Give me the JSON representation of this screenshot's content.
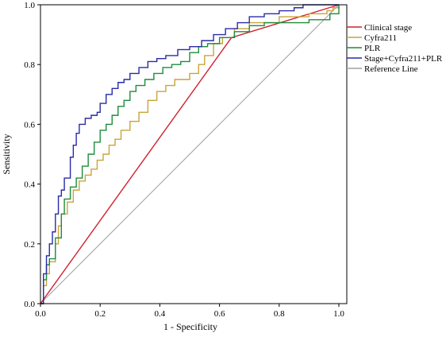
{
  "chart_data": {
    "type": "line",
    "title": "",
    "xlabel": "1 - Specificity",
    "ylabel": "Sensitivity",
    "xlim": [
      0,
      1
    ],
    "ylim": [
      0,
      1
    ],
    "x_ticks": [
      "0.0",
      "0.2",
      "0.4",
      "0.6",
      "0.8",
      "1.0"
    ],
    "y_ticks": [
      "0.0",
      "0.2",
      "0.4",
      "0.6",
      "0.8",
      "1.0"
    ],
    "grid": false,
    "legend_position": "right",
    "series": [
      {
        "name": "Clinical stage",
        "color": "#d0202e",
        "points": [
          [
            0,
            0
          ],
          [
            0.64,
            0.89
          ],
          [
            1,
            1
          ]
        ]
      },
      {
        "name": "Cyfra211",
        "color": "#c8a43a",
        "points": [
          [
            0,
            0
          ],
          [
            0.01,
            0.06
          ],
          [
            0.02,
            0.1
          ],
          [
            0.03,
            0.14
          ],
          [
            0.05,
            0.2
          ],
          [
            0.06,
            0.26
          ],
          [
            0.07,
            0.3
          ],
          [
            0.09,
            0.34
          ],
          [
            0.11,
            0.38
          ],
          [
            0.13,
            0.41
          ],
          [
            0.15,
            0.43
          ],
          [
            0.17,
            0.45
          ],
          [
            0.19,
            0.48
          ],
          [
            0.21,
            0.5
          ],
          [
            0.23,
            0.53
          ],
          [
            0.25,
            0.55
          ],
          [
            0.27,
            0.58
          ],
          [
            0.3,
            0.61
          ],
          [
            0.33,
            0.64
          ],
          [
            0.36,
            0.68
          ],
          [
            0.39,
            0.71
          ],
          [
            0.42,
            0.73
          ],
          [
            0.45,
            0.75
          ],
          [
            0.5,
            0.77
          ],
          [
            0.53,
            0.8
          ],
          [
            0.55,
            0.83
          ],
          [
            0.58,
            0.87
          ],
          [
            0.61,
            0.89
          ],
          [
            0.65,
            0.92
          ],
          [
            0.7,
            0.94
          ],
          [
            0.75,
            0.94
          ],
          [
            0.8,
            0.96
          ],
          [
            0.87,
            0.96
          ],
          [
            0.9,
            0.97
          ],
          [
            0.93,
            0.97
          ],
          [
            0.96,
            0.98
          ],
          [
            0.98,
            0.99
          ],
          [
            1,
            1
          ]
        ]
      },
      {
        "name": "PLR",
        "color": "#1e8c3c",
        "points": [
          [
            0,
            0
          ],
          [
            0.01,
            0.08
          ],
          [
            0.02,
            0.13
          ],
          [
            0.03,
            0.15
          ],
          [
            0.05,
            0.22
          ],
          [
            0.07,
            0.3
          ],
          [
            0.08,
            0.35
          ],
          [
            0.1,
            0.39
          ],
          [
            0.12,
            0.42
          ],
          [
            0.14,
            0.46
          ],
          [
            0.16,
            0.5
          ],
          [
            0.18,
            0.54
          ],
          [
            0.2,
            0.58
          ],
          [
            0.22,
            0.6
          ],
          [
            0.24,
            0.63
          ],
          [
            0.26,
            0.66
          ],
          [
            0.28,
            0.68
          ],
          [
            0.3,
            0.71
          ],
          [
            0.32,
            0.73
          ],
          [
            0.35,
            0.75
          ],
          [
            0.38,
            0.77
          ],
          [
            0.41,
            0.79
          ],
          [
            0.44,
            0.8
          ],
          [
            0.47,
            0.81
          ],
          [
            0.5,
            0.84
          ],
          [
            0.53,
            0.86
          ],
          [
            0.56,
            0.87
          ],
          [
            0.6,
            0.89
          ],
          [
            0.65,
            0.91
          ],
          [
            0.7,
            0.93
          ],
          [
            0.75,
            0.94
          ],
          [
            0.8,
            0.94
          ],
          [
            0.86,
            0.94
          ],
          [
            0.9,
            0.95
          ],
          [
            0.95,
            0.95
          ],
          [
            0.97,
            0.97
          ],
          [
            1,
            1
          ]
        ]
      },
      {
        "name": "Stage+Cyfra211+PLR",
        "color": "#2a2aa8",
        "points": [
          [
            0,
            0
          ],
          [
            0.01,
            0.1
          ],
          [
            0.02,
            0.16
          ],
          [
            0.03,
            0.2
          ],
          [
            0.04,
            0.24
          ],
          [
            0.05,
            0.3
          ],
          [
            0.06,
            0.36
          ],
          [
            0.07,
            0.38
          ],
          [
            0.08,
            0.42
          ],
          [
            0.1,
            0.49
          ],
          [
            0.11,
            0.53
          ],
          [
            0.12,
            0.57
          ],
          [
            0.13,
            0.6
          ],
          [
            0.15,
            0.62
          ],
          [
            0.17,
            0.63
          ],
          [
            0.19,
            0.64
          ],
          [
            0.2,
            0.67
          ],
          [
            0.22,
            0.7
          ],
          [
            0.24,
            0.72
          ],
          [
            0.26,
            0.74
          ],
          [
            0.28,
            0.75
          ],
          [
            0.3,
            0.77
          ],
          [
            0.33,
            0.79
          ],
          [
            0.36,
            0.81
          ],
          [
            0.39,
            0.82
          ],
          [
            0.42,
            0.83
          ],
          [
            0.46,
            0.85
          ],
          [
            0.5,
            0.86
          ],
          [
            0.54,
            0.88
          ],
          [
            0.58,
            0.9
          ],
          [
            0.62,
            0.92
          ],
          [
            0.66,
            0.94
          ],
          [
            0.7,
            0.96
          ],
          [
            0.75,
            0.97
          ],
          [
            0.8,
            0.98
          ],
          [
            0.85,
            0.99
          ],
          [
            0.88,
            1
          ],
          [
            1,
            1
          ]
        ]
      },
      {
        "name": "Reference Line",
        "color": "#a0a0a0",
        "points": [
          [
            0,
            0
          ],
          [
            1,
            1
          ]
        ]
      }
    ]
  }
}
